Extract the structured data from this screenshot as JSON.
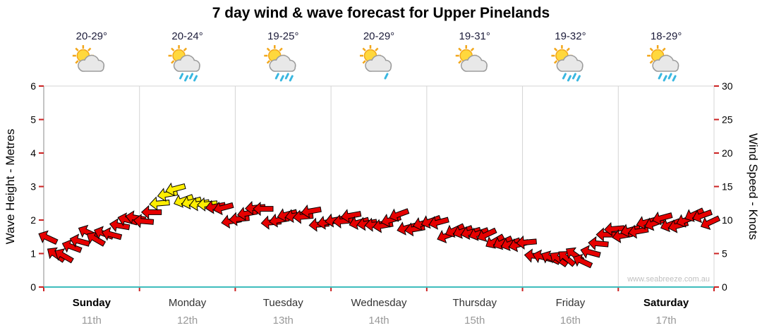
{
  "title": "7 day wind & wave forecast for Upper Pinelands",
  "watermark": "www.seabreeze.com.au",
  "days": [
    {
      "temp": "20-29°",
      "icon": "partly-cloudy",
      "name": "Sunday",
      "date": "11th",
      "weekend": true
    },
    {
      "temp": "20-24°",
      "icon": "showers",
      "name": "Monday",
      "date": "12th",
      "weekend": false
    },
    {
      "temp": "19-25°",
      "icon": "showers",
      "name": "Tuesday",
      "date": "13th",
      "weekend": false
    },
    {
      "temp": "20-29°",
      "icon": "few-showers",
      "name": "Wednesday",
      "date": "14th",
      "weekend": false
    },
    {
      "temp": "19-31°",
      "icon": "partly-cloudy",
      "name": "Thursday",
      "date": "15th",
      "weekend": false
    },
    {
      "temp": "19-32°",
      "icon": "showers",
      "name": "Friday",
      "date": "16th",
      "weekend": false
    },
    {
      "temp": "18-29°",
      "icon": "showers",
      "name": "Saturday",
      "date": "17th",
      "weekend": true
    }
  ],
  "axes": {
    "left_label": "Wave Height - Metres",
    "right_label": "Wind Speed - Knots",
    "left_ticks": [
      0,
      1,
      2,
      3,
      4,
      5,
      6
    ],
    "right_ticks": [
      0,
      5,
      10,
      15,
      20,
      25,
      30
    ],
    "left_max": 6,
    "right_max": 30
  },
  "chart_data": {
    "type": "wind-arrow-series",
    "title": "7 day wind & wave forecast for Upper Pinelands",
    "unit": "knots",
    "points_per_day": 12,
    "ylim_knots": [
      0,
      30
    ],
    "ylim_metres": [
      0,
      6
    ],
    "yellow_threshold_knots": 12,
    "colors": {
      "light_wind": "#e60000",
      "moderate_wind": "#ffee00",
      "arrow_stroke": "#000000",
      "axis_bottom": "#3fbdbd",
      "tick": "#cc2222"
    },
    "knots": [
      6.5,
      5.5,
      5,
      6,
      6.5,
      7.5,
      8,
      8.5,
      8,
      9,
      9.5,
      9.5,
      10.5,
      11.5,
      12.5,
      13.5,
      14,
      13.8,
      13.2,
      12.6,
      12.2,
      11.5,
      11,
      10.5,
      10.5,
      11,
      11.5,
      11,
      10.5,
      10.5,
      11,
      10.5,
      10,
      10.5,
      10,
      10,
      10,
      9.5,
      10,
      10.5,
      10,
      9.5,
      9,
      9.5,
      10,
      9.5,
      9,
      9.5,
      9.5,
      9,
      8.5,
      9,
      8.5,
      8,
      7.5,
      7,
      7.5,
      7,
      6.5,
      6,
      6,
      5.5,
      5,
      4.5,
      4,
      3.8,
      4,
      4.5,
      5.5,
      6.5,
      7.5,
      8,
      8.5,
      9,
      8.5,
      9.5,
      9,
      9.5,
      10,
      9.5,
      10,
      10.5,
      10,
      10.5
    ],
    "directions_deg": [
      205,
      215,
      210,
      200,
      195,
      205,
      210,
      200,
      195,
      190,
      195,
      190,
      185,
      180,
      175,
      170,
      165,
      160,
      165,
      170,
      175,
      170,
      165,
      170,
      175,
      170,
      175,
      180,
      175,
      170,
      165,
      170,
      175,
      170,
      175,
      170,
      170,
      175,
      170,
      165,
      170,
      175,
      170,
      165,
      160,
      165,
      170,
      165,
      160,
      165,
      160,
      155,
      160,
      165,
      160,
      155,
      150,
      155,
      160,
      165,
      175,
      185,
      195,
      205,
      215,
      220,
      215,
      205,
      195,
      185,
      180,
      175,
      170,
      165,
      170,
      165,
      160,
      165,
      160,
      165,
      160,
      155,
      160,
      155
    ]
  }
}
